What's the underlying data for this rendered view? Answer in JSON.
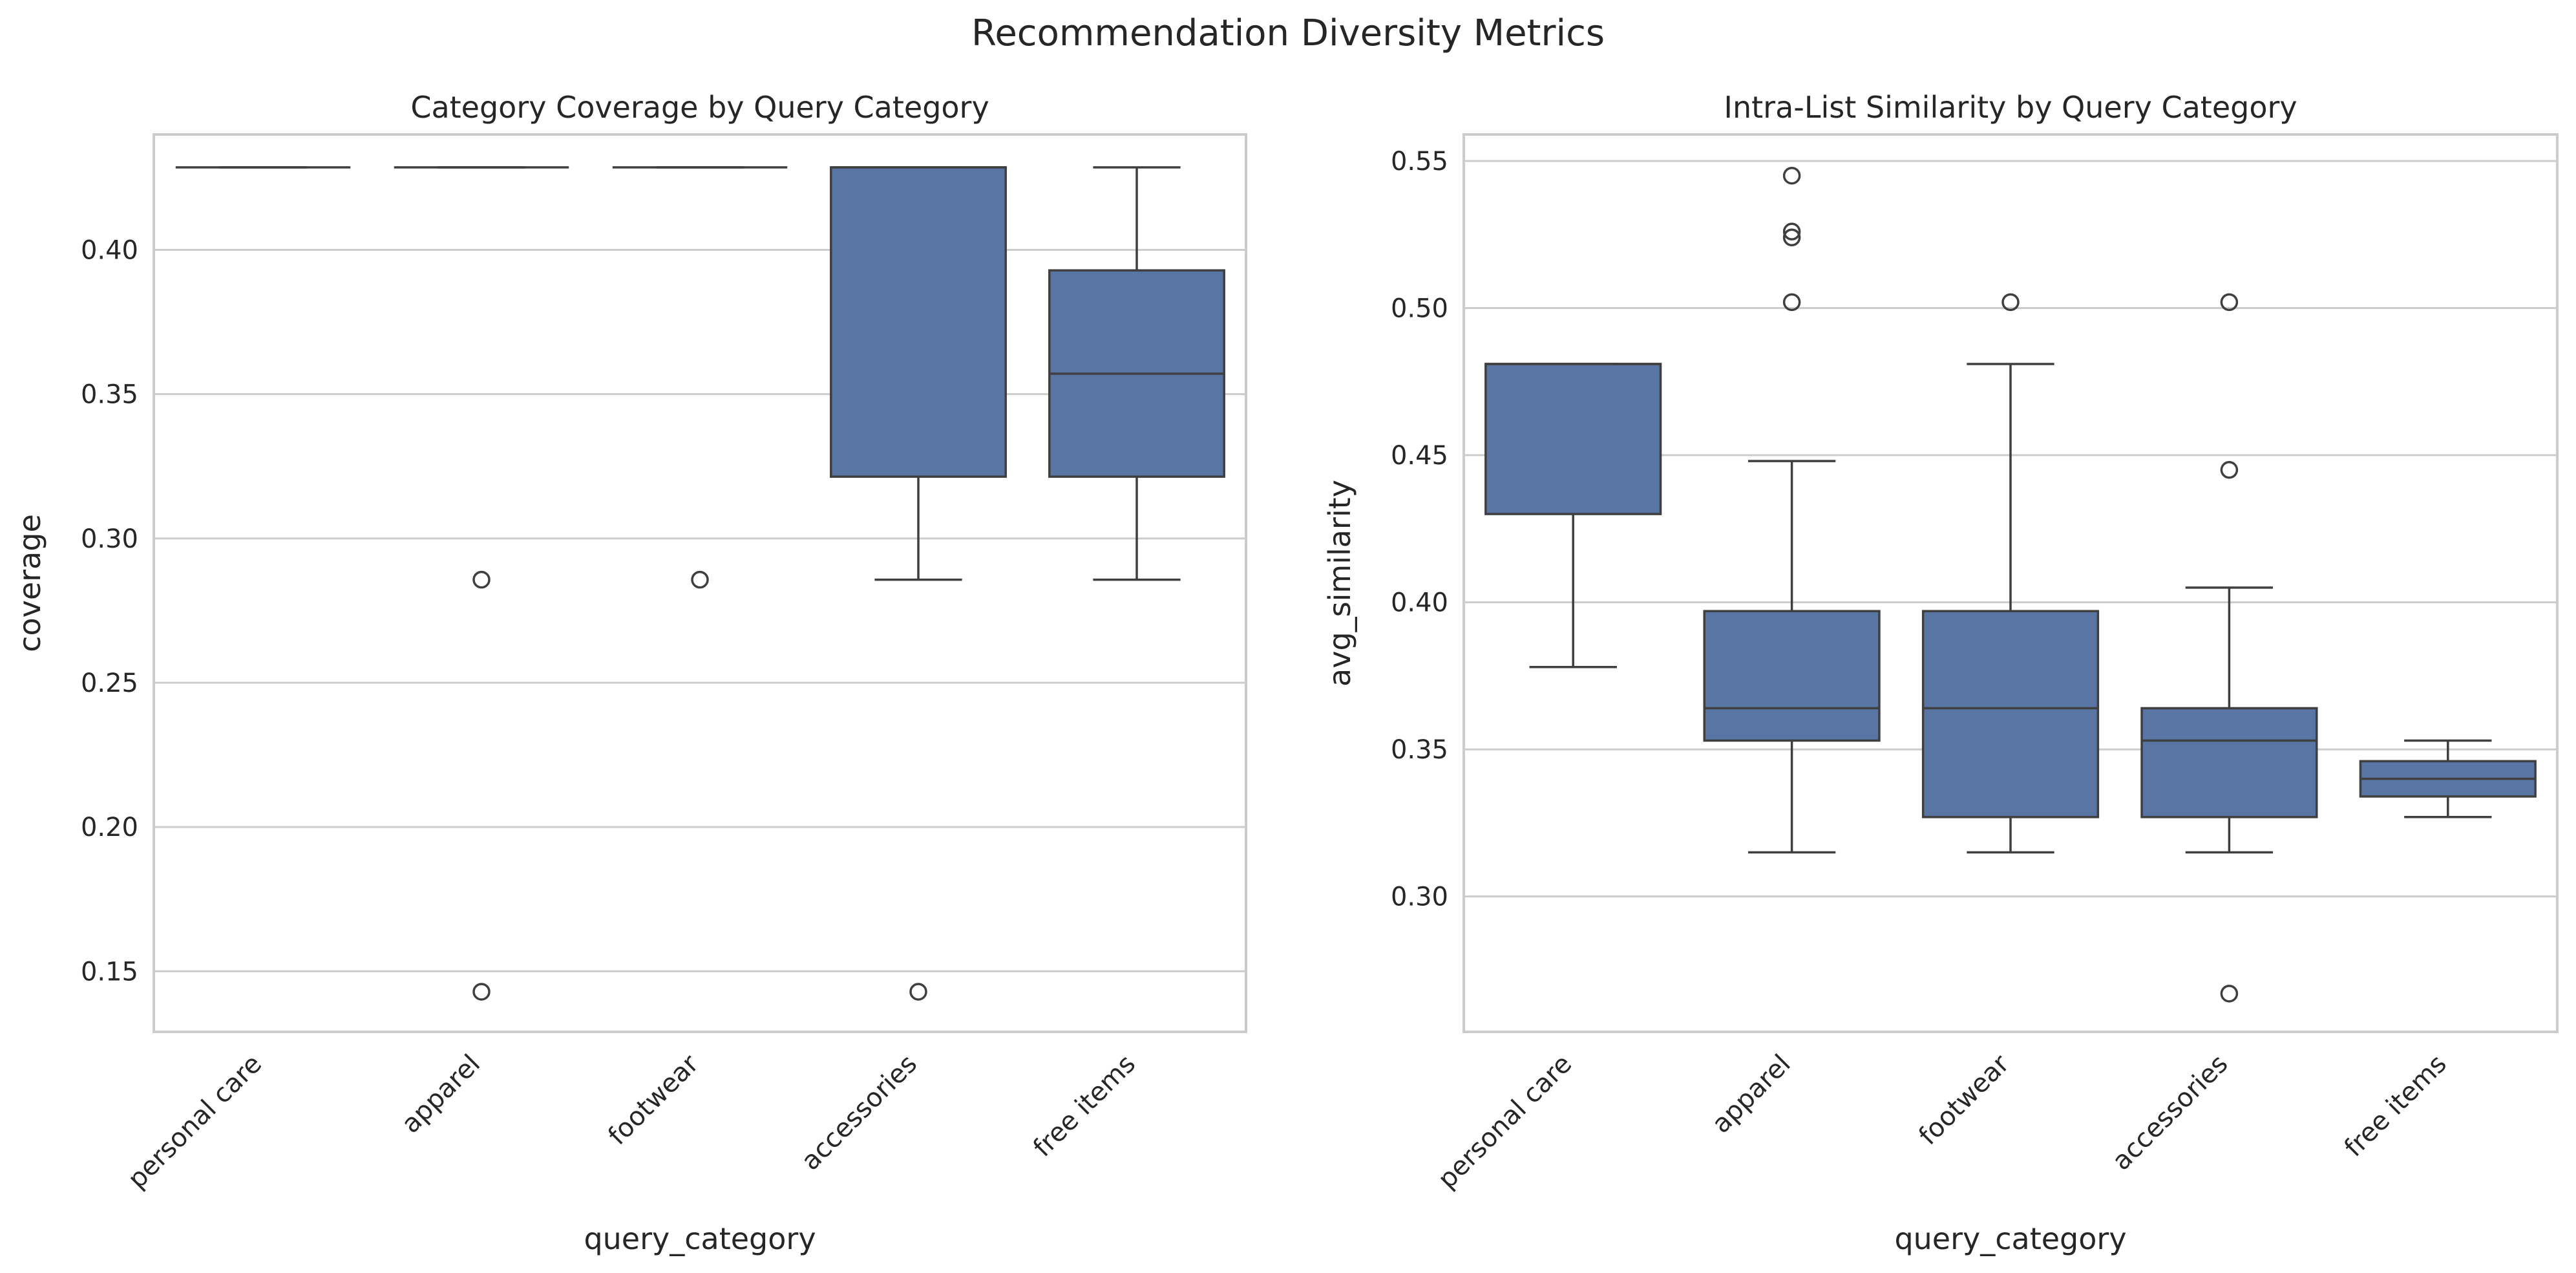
{
  "figure_title": "Recommendation Diversity Metrics",
  "chart_data": [
    {
      "type": "box",
      "title": "Category Coverage by Query Category",
      "xlabel": "query_category",
      "ylabel": "coverage",
      "categories": [
        "personal care",
        "apparel",
        "footwear",
        "accessories",
        "free items"
      ],
      "ylim": [
        0.129,
        0.44
      ],
      "yticks": [
        0.15,
        0.2,
        0.25,
        0.3,
        0.35,
        0.4
      ],
      "ytick_labels": [
        "0.15",
        "0.20",
        "0.25",
        "0.30",
        "0.35",
        "0.40"
      ],
      "grid": true,
      "box_color": "#5875a4",
      "line_color": "#3f3f3f",
      "boxes": [
        {
          "whislo": 0.4286,
          "q1": 0.4286,
          "med": 0.4286,
          "q3": 0.4286,
          "whishi": 0.4286,
          "fliers": []
        },
        {
          "whislo": 0.4286,
          "q1": 0.4286,
          "med": 0.4286,
          "q3": 0.4286,
          "whishi": 0.4286,
          "fliers": [
            0.2857,
            0.1429
          ]
        },
        {
          "whislo": 0.4286,
          "q1": 0.4286,
          "med": 0.4286,
          "q3": 0.4286,
          "whishi": 0.4286,
          "fliers": [
            0.2857
          ]
        },
        {
          "whislo": 0.2857,
          "q1": 0.3214,
          "med": 0.4286,
          "q3": 0.4286,
          "whishi": 0.4286,
          "fliers": [
            0.1429
          ]
        },
        {
          "whislo": 0.2857,
          "q1": 0.3214,
          "med": 0.3571,
          "q3": 0.3929,
          "whishi": 0.4286,
          "fliers": []
        }
      ]
    },
    {
      "type": "box",
      "title": "Intra-List Similarity by Query Category",
      "xlabel": "query_category",
      "ylabel": "avg_similarity",
      "categories": [
        "personal care",
        "apparel",
        "footwear",
        "accessories",
        "free items"
      ],
      "ylim": [
        0.254,
        0.559
      ],
      "yticks": [
        0.3,
        0.35,
        0.4,
        0.45,
        0.5,
        0.55
      ],
      "ytick_labels": [
        "0.30",
        "0.35",
        "0.40",
        "0.45",
        "0.50",
        "0.55"
      ],
      "grid": true,
      "box_color": "#5875a4",
      "line_color": "#3f3f3f",
      "boxes": [
        {
          "whislo": 0.378,
          "q1": 0.43,
          "med": 0.481,
          "q3": 0.481,
          "whishi": 0.481,
          "fliers": []
        },
        {
          "whislo": 0.315,
          "q1": 0.353,
          "med": 0.364,
          "q3": 0.397,
          "whishi": 0.448,
          "fliers": [
            0.545,
            0.526,
            0.524,
            0.502
          ]
        },
        {
          "whislo": 0.315,
          "q1": 0.327,
          "med": 0.364,
          "q3": 0.397,
          "whishi": 0.481,
          "fliers": [
            0.502
          ]
        },
        {
          "whislo": 0.315,
          "q1": 0.327,
          "med": 0.353,
          "q3": 0.364,
          "whishi": 0.405,
          "fliers": [
            0.502,
            0.445,
            0.267
          ]
        },
        {
          "whislo": 0.327,
          "q1": 0.334,
          "med": 0.34,
          "q3": 0.346,
          "whishi": 0.353,
          "fliers": []
        }
      ]
    }
  ]
}
